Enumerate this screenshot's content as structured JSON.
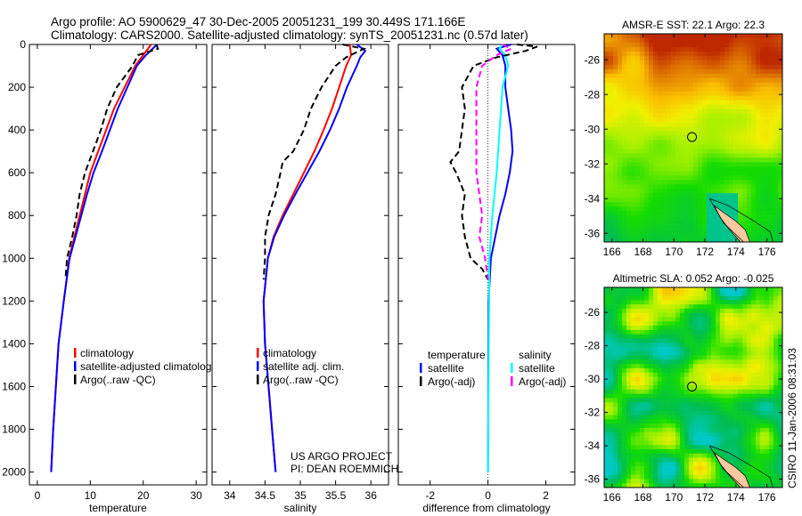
{
  "title": {
    "line1": "Argo profile: AO 5900629_47 30-Dec-2005 20051231_199 30.449S 171.166E",
    "line2": "Climatology: CARS2000. Satellite-adjusted climatology: synTS_20051231.nc (0.57d later)"
  },
  "colors": {
    "red": "#ff0000",
    "blue": "#0000ff",
    "black": "#000000",
    "cyan": "#00ffff",
    "magenta": "#ff00ff"
  },
  "chart_data": [
    {
      "type": "line",
      "id": "temperature",
      "xlabel": "temperature",
      "xlim": [
        -1.5,
        32
      ],
      "ylim": [
        2060,
        0
      ],
      "xticks": [
        0,
        10,
        20,
        30
      ],
      "yticks": [
        0,
        200,
        400,
        600,
        800,
        1000,
        1200,
        1400,
        1600,
        1800,
        2000
      ],
      "legend": [
        "climatology",
        "satellite-adjusted climatology",
        "Argo(..raw -QC)"
      ],
      "series": [
        {
          "name": "climatology",
          "color": "red",
          "dash": false,
          "points": [
            [
              21.5,
              0
            ],
            [
              20,
              50
            ],
            [
              18.5,
              100
            ],
            [
              16.5,
              200
            ],
            [
              14.5,
              300
            ],
            [
              13,
              400
            ],
            [
              11.5,
              500
            ],
            [
              10,
              600
            ],
            [
              9,
              700
            ],
            [
              8,
              800
            ],
            [
              7,
              900
            ],
            [
              6,
              1000
            ],
            [
              5,
              1200
            ],
            [
              4,
              1400
            ],
            [
              3.5,
              1600
            ],
            [
              3,
              1800
            ],
            [
              2.6,
              2000
            ]
          ]
        },
        {
          "name": "satellite-adjusted climatology",
          "color": "blue",
          "dash": false,
          "points": [
            [
              22.6,
              0
            ],
            [
              20.5,
              50
            ],
            [
              18.8,
              100
            ],
            [
              17,
              200
            ],
            [
              15.2,
              300
            ],
            [
              13.7,
              400
            ],
            [
              12.2,
              500
            ],
            [
              10.6,
              600
            ],
            [
              9.4,
              700
            ],
            [
              8.3,
              800
            ],
            [
              7.2,
              900
            ],
            [
              6.1,
              1000
            ],
            [
              5,
              1200
            ],
            [
              4,
              1400
            ],
            [
              3.5,
              1600
            ],
            [
              3,
              1800
            ],
            [
              2.6,
              2000
            ]
          ]
        },
        {
          "name": "Argo(..raw -QC)",
          "color": "black",
          "dash": true,
          "points": [
            [
              22.5,
              0
            ],
            [
              22.8,
              20
            ],
            [
              19,
              50
            ],
            [
              18,
              100
            ],
            [
              15,
              200
            ],
            [
              13.2,
              300
            ],
            [
              12,
              400
            ],
            [
              10.5,
              500
            ],
            [
              9,
              600
            ],
            [
              8,
              700
            ],
            [
              7.4,
              800
            ],
            [
              6.6,
              900
            ],
            [
              5.6,
              1000
            ],
            [
              5.3,
              1100
            ]
          ]
        }
      ]
    },
    {
      "type": "line",
      "id": "salinity",
      "xlabel": "salinity",
      "xlim": [
        33.75,
        36.25
      ],
      "ylim": [
        2060,
        0
      ],
      "xticks": [
        34,
        34.5,
        35,
        35.5,
        36
      ],
      "yticks": [
        0,
        200,
        400,
        600,
        800,
        1000,
        1200,
        1400,
        1600,
        1800,
        2000
      ],
      "legend": [
        "climatology",
        "satellite adj. clim.",
        "Argo(..raw -QC)"
      ],
      "annotation": [
        "US ARGO PROJECT",
        "PI: DEAN ROEMMICH"
      ],
      "series": [
        {
          "name": "climatology",
          "color": "red",
          "dash": false,
          "points": [
            [
              35.7,
              0
            ],
            [
              35.72,
              50
            ],
            [
              35.65,
              100
            ],
            [
              35.55,
              200
            ],
            [
              35.45,
              300
            ],
            [
              35.33,
              400
            ],
            [
              35.2,
              500
            ],
            [
              35.05,
              600
            ],
            [
              34.9,
              700
            ],
            [
              34.75,
              800
            ],
            [
              34.62,
              900
            ],
            [
              34.54,
              1000
            ],
            [
              34.48,
              1200
            ],
            [
              34.5,
              1400
            ],
            [
              34.55,
              1600
            ],
            [
              34.6,
              1800
            ],
            [
              34.65,
              2000
            ]
          ]
        },
        {
          "name": "satellite adj. clim.",
          "color": "blue",
          "dash": false,
          "points": [
            [
              35.8,
              0
            ],
            [
              35.92,
              30
            ],
            [
              35.85,
              60
            ],
            [
              35.8,
              100
            ],
            [
              35.66,
              200
            ],
            [
              35.55,
              300
            ],
            [
              35.42,
              400
            ],
            [
              35.27,
              500
            ],
            [
              35.1,
              600
            ],
            [
              34.93,
              700
            ],
            [
              34.77,
              800
            ],
            [
              34.63,
              900
            ],
            [
              34.54,
              1000
            ],
            [
              34.48,
              1200
            ],
            [
              34.5,
              1400
            ],
            [
              34.55,
              1600
            ],
            [
              34.6,
              1800
            ],
            [
              34.65,
              2000
            ]
          ]
        },
        {
          "name": "Argo(..raw -QC)",
          "color": "black",
          "dash": true,
          "points": [
            [
              35.6,
              0
            ],
            [
              35.9,
              20
            ],
            [
              35.65,
              60
            ],
            [
              35.5,
              100
            ],
            [
              35.3,
              200
            ],
            [
              35.15,
              300
            ],
            [
              35.05,
              400
            ],
            [
              34.9,
              500
            ],
            [
              34.75,
              550
            ],
            [
              34.72,
              600
            ],
            [
              34.65,
              700
            ],
            [
              34.55,
              800
            ],
            [
              34.5,
              900
            ],
            [
              34.5,
              1000
            ],
            [
              34.48,
              1100
            ]
          ]
        }
      ]
    },
    {
      "type": "line",
      "id": "difference",
      "xlabel": "difference from climatology",
      "xlim": [
        -3.1,
        3.0
      ],
      "ylim": [
        2060,
        0
      ],
      "xticks": [
        -2,
        0,
        2
      ],
      "yticks": [
        0,
        200,
        400,
        600,
        800,
        1000,
        1200,
        1400,
        1600,
        1800,
        2000
      ],
      "legend_left": {
        "header": "temperature",
        "items": [
          "satellite",
          "Argo(-adj)"
        ]
      },
      "legend_right": {
        "header": "salinity",
        "items": [
          "satellite",
          "Argo(-adj)"
        ]
      },
      "series": [
        {
          "name": "temperature satellite",
          "color": "blue",
          "dash": false,
          "points": [
            [
              0.8,
              0
            ],
            [
              0.3,
              20
            ],
            [
              0.5,
              50
            ],
            [
              0.6,
              100
            ],
            [
              0.6,
              200
            ],
            [
              0.7,
              300
            ],
            [
              0.8,
              400
            ],
            [
              0.85,
              500
            ],
            [
              0.75,
              600
            ],
            [
              0.6,
              700
            ],
            [
              0.4,
              800
            ],
            [
              0.1,
              1000
            ],
            [
              0.02,
              1200
            ],
            [
              0,
              2000
            ]
          ]
        },
        {
          "name": "salinity satellite",
          "color": "cyan",
          "dash": false,
          "points": [
            [
              0.5,
              0
            ],
            [
              0.4,
              20
            ],
            [
              0.6,
              50
            ],
            [
              0.7,
              100
            ],
            [
              0.5,
              200
            ],
            [
              0.4,
              400
            ],
            [
              0.3,
              600
            ],
            [
              0.15,
              800
            ],
            [
              0.05,
              1000
            ],
            [
              0,
              2000
            ]
          ]
        },
        {
          "name": "temperature Argo(-adj)",
          "color": "black",
          "dash": true,
          "points": [
            [
              1.0,
              0
            ],
            [
              1.7,
              10
            ],
            [
              1.3,
              30
            ],
            [
              0.3,
              60
            ],
            [
              -0.5,
              100
            ],
            [
              -0.9,
              200
            ],
            [
              -0.8,
              300
            ],
            [
              -0.9,
              400
            ],
            [
              -1.0,
              500
            ],
            [
              -1.3,
              550
            ],
            [
              -1.1,
              600
            ],
            [
              -0.8,
              700
            ],
            [
              -0.9,
              800
            ],
            [
              -0.8,
              900
            ],
            [
              -0.6,
              1000
            ],
            [
              -0.2,
              1050
            ],
            [
              0,
              1100
            ]
          ]
        },
        {
          "name": "salinity Argo(-adj)",
          "color": "magenta",
          "dash": true,
          "points": [
            [
              0.5,
              0
            ],
            [
              0.8,
              20
            ],
            [
              0.3,
              50
            ],
            [
              -0.2,
              100
            ],
            [
              -0.4,
              200
            ],
            [
              -0.4,
              400
            ],
            [
              -0.4,
              600
            ],
            [
              -0.3,
              700
            ],
            [
              -0.2,
              800
            ],
            [
              -0.3,
              900
            ],
            [
              -0.1,
              1000
            ],
            [
              0,
              1100
            ]
          ]
        }
      ]
    },
    {
      "type": "heatmap",
      "id": "sst-map",
      "title": "AMSR-E SST: 22.1 Argo: 22.3",
      "xlim": [
        165.5,
        177
      ],
      "ylim": [
        -36.5,
        -24.5
      ],
      "xticks": [
        166,
        168,
        170,
        172,
        174,
        176
      ],
      "yticks": [
        -26,
        -28,
        -30,
        -32,
        -34,
        -36
      ],
      "argo_position": [
        171.166,
        -30.449
      ]
    },
    {
      "type": "heatmap",
      "id": "sla-map",
      "title": "Altimetric SLA: 0.052 Argo: -0.025",
      "xlim": [
        165.5,
        177
      ],
      "ylim": [
        -36.5,
        -24.5
      ],
      "xticks": [
        166,
        168,
        170,
        172,
        174,
        176
      ],
      "yticks": [
        -26,
        -28,
        -30,
        -32,
        -34,
        -36
      ],
      "argo_position": [
        171.166,
        -30.449
      ]
    }
  ],
  "footer_stamp": "CSIRO 11-Jan-2006 08:31:03"
}
